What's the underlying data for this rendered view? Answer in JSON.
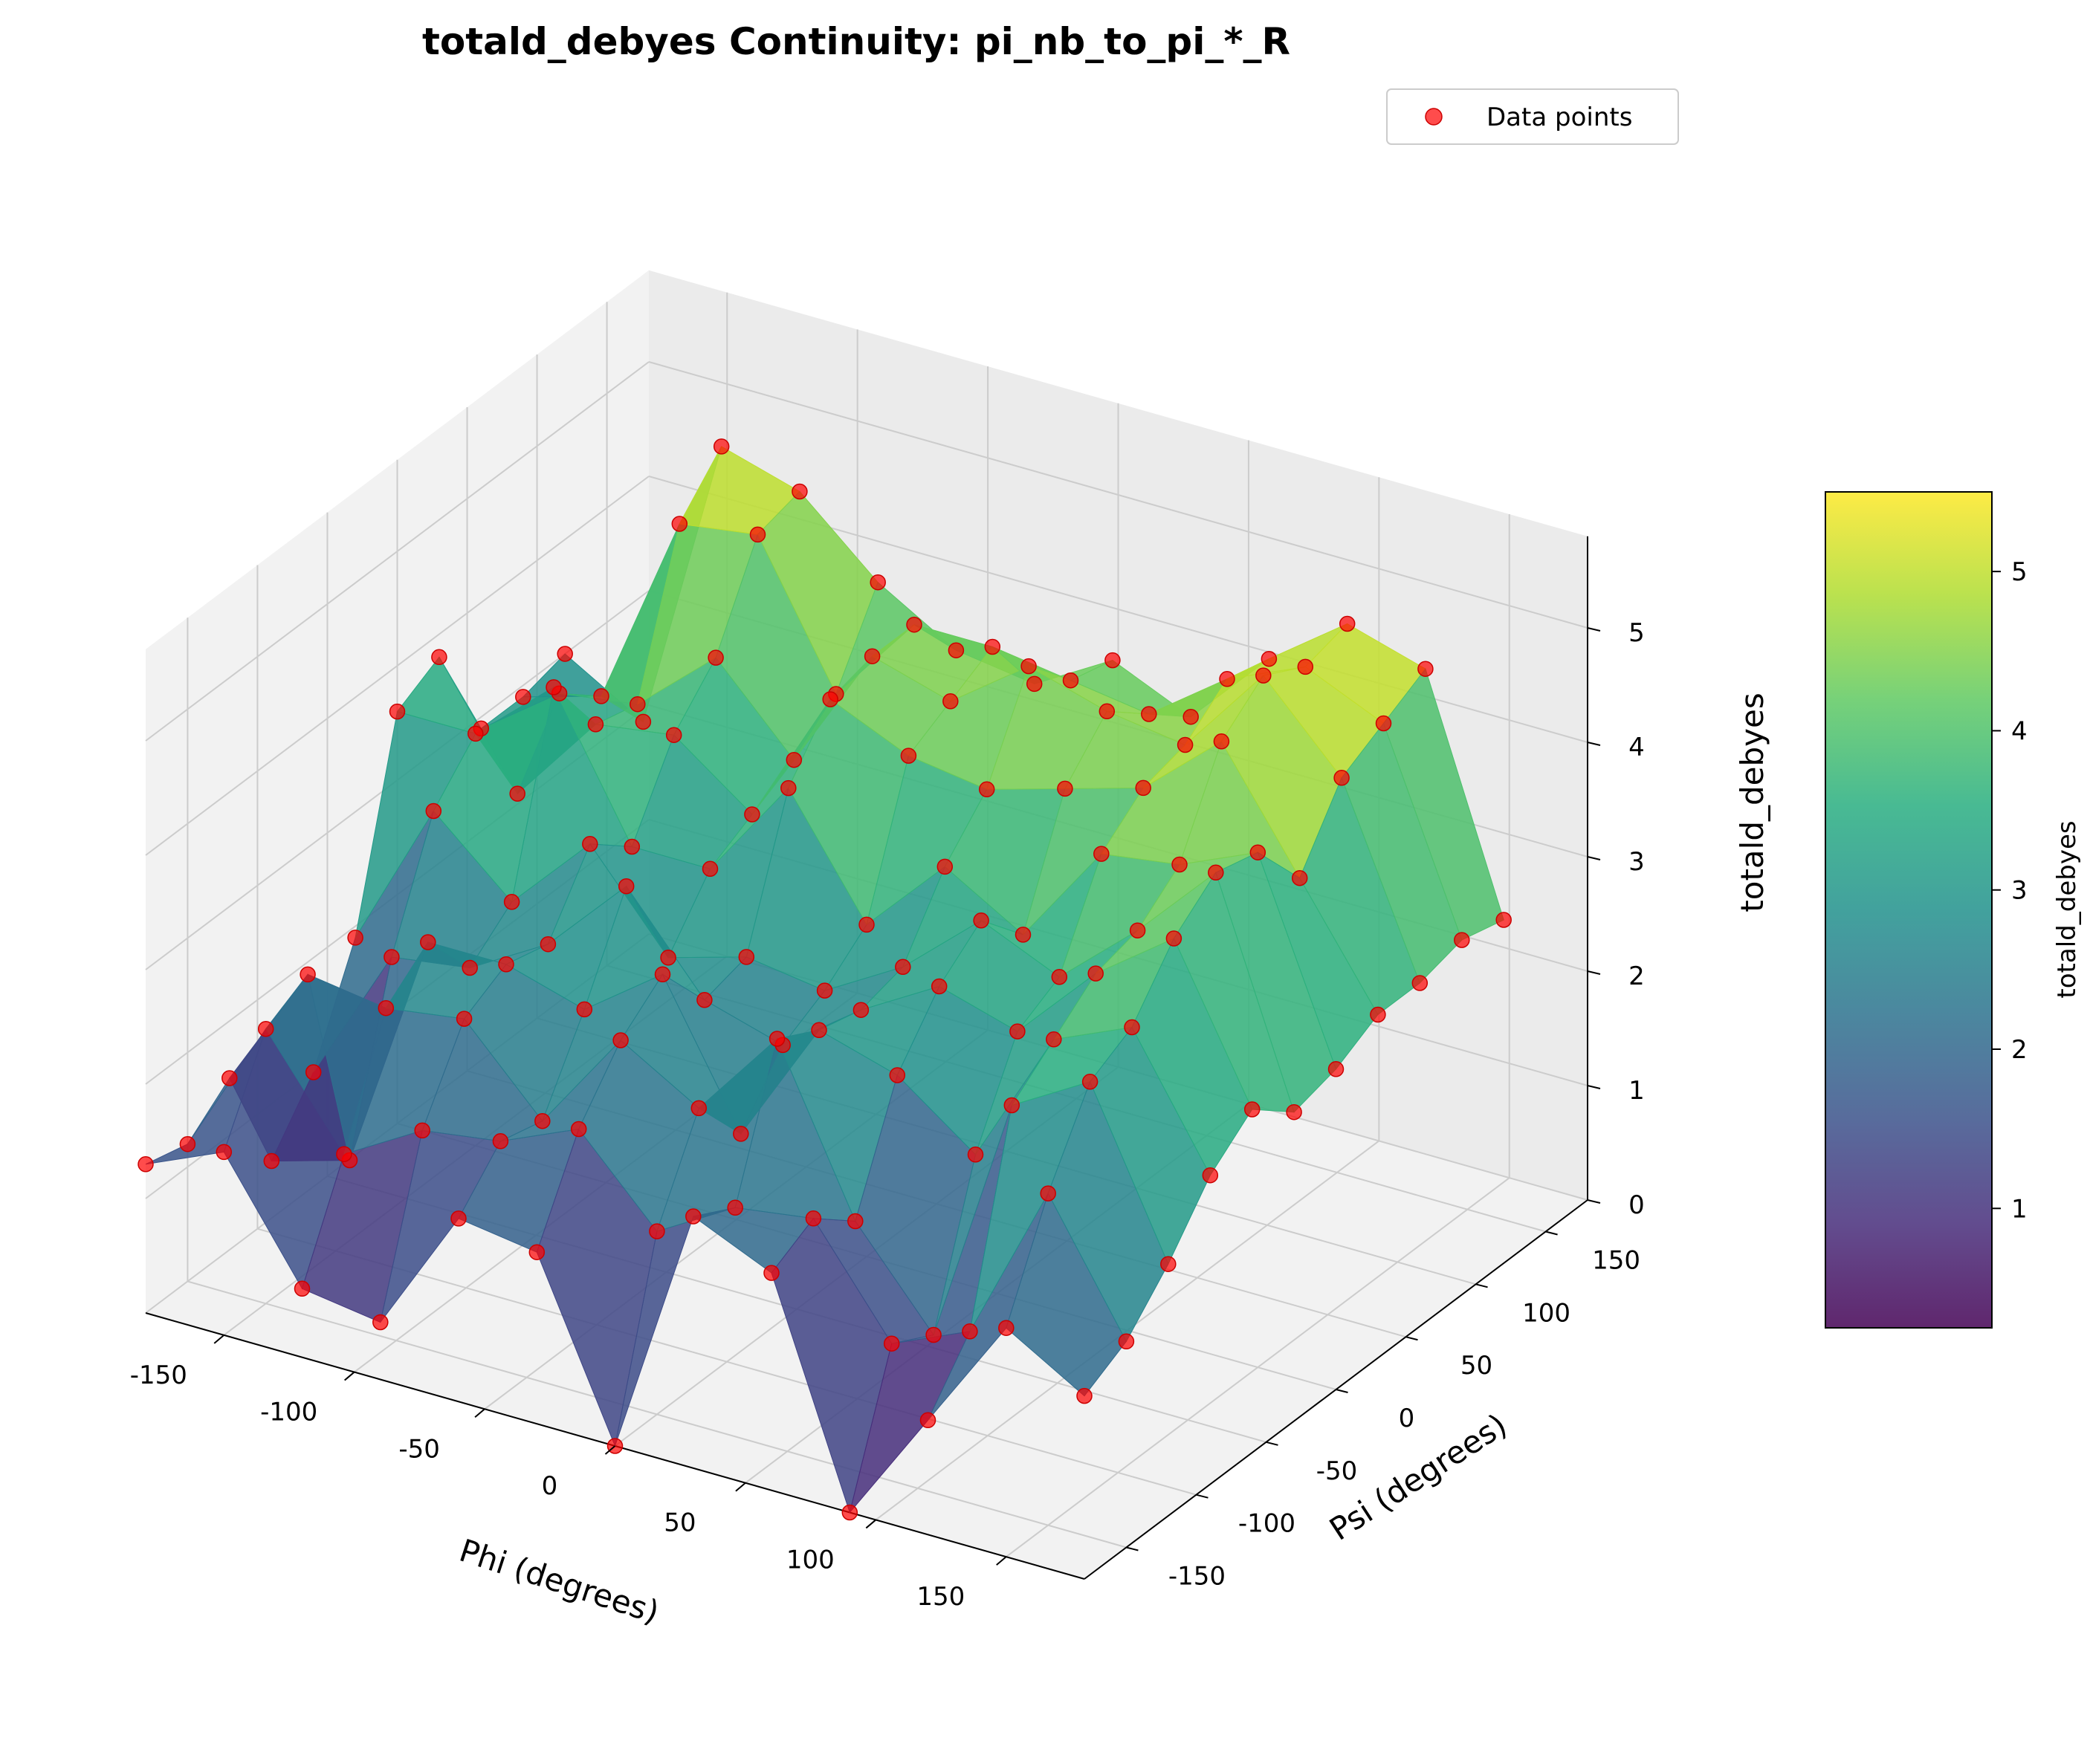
{
  "chart_data": {
    "type": "surface3d-scatter",
    "title": "totald_debyes Continuity: pi_nb_to_pi_*_R",
    "xlabel": "Phi (degrees)",
    "ylabel": "Psi (degrees)",
    "zlabel": "totald_debyes",
    "xticks": [
      -150,
      -100,
      -50,
      0,
      50,
      100,
      150
    ],
    "yticks": [
      -150,
      -100,
      -50,
      0,
      50,
      100,
      150
    ],
    "zticks": [
      0,
      1,
      2,
      3,
      4,
      5
    ],
    "xlim": [
      -180,
      180
    ],
    "ylim": [
      -180,
      180
    ],
    "zlim": [
      0,
      5.8
    ],
    "grid": true,
    "legend": {
      "entries": [
        "Data points"
      ],
      "placement": "top-right"
    },
    "colormap": "viridis",
    "colorbar": {
      "label": "totald_debyes",
      "ticks": [
        1,
        2,
        3,
        4,
        5
      ],
      "range": [
        0.25,
        5.5
      ]
    },
    "scatter_color": "#ff0000",
    "points": [
      [
        -180,
        -180,
        1.3
      ],
      [
        -180,
        -150,
        1.2
      ],
      [
        -180,
        -120,
        1.5
      ],
      [
        -180,
        -90,
        0.5
      ],
      [
        -180,
        -60,
        1.0
      ],
      [
        -180,
        -30,
        1.9
      ],
      [
        -180,
        0,
        3.6
      ],
      [
        -180,
        30,
        3.8
      ],
      [
        -180,
        60,
        2.9
      ],
      [
        -180,
        90,
        2.9
      ],
      [
        -180,
        120,
        3.0
      ],
      [
        -150,
        -180,
        1.6
      ],
      [
        -150,
        -150,
        2.4
      ],
      [
        -150,
        -120,
        2.6
      ],
      [
        -150,
        -90,
        0.7
      ],
      [
        -150,
        -60,
        2.2
      ],
      [
        -150,
        -30,
        3.2
      ],
      [
        -150,
        0,
        3.6
      ],
      [
        -150,
        30,
        2.8
      ],
      [
        -150,
        60,
        3.4
      ],
      [
        -150,
        90,
        3.1
      ],
      [
        -150,
        120,
        2.6
      ],
      [
        -120,
        -180,
        0.6
      ],
      [
        -120,
        -150,
        1.5
      ],
      [
        -120,
        -120,
        2.5
      ],
      [
        -120,
        -90,
        2.8
      ],
      [
        -120,
        -60,
        2.3
      ],
      [
        -120,
        -30,
        2.6
      ],
      [
        -120,
        0,
        4.2
      ],
      [
        -120,
        30,
        3.6
      ],
      [
        -120,
        60,
        3.5
      ],
      [
        -120,
        90,
        4.8
      ],
      [
        -120,
        120,
        5.2
      ],
      [
        -90,
        -180,
        0.5
      ],
      [
        -90,
        -150,
        1.9
      ],
      [
        -90,
        -120,
        2.6
      ],
      [
        -90,
        -90,
        2.8
      ],
      [
        -90,
        -60,
        2.7
      ],
      [
        -90,
        -30,
        3.3
      ],
      [
        -90,
        0,
        3.0
      ],
      [
        -90,
        30,
        3.7
      ],
      [
        -90,
        60,
        4.1
      ],
      [
        -90,
        90,
        4.9
      ],
      [
        -90,
        120,
        5.0
      ],
      [
        -60,
        -180,
        1.6
      ],
      [
        -60,
        -150,
        2.0
      ],
      [
        -60,
        -120,
        1.9
      ],
      [
        -60,
        -90,
        2.6
      ],
      [
        -60,
        -60,
        3.4
      ],
      [
        -60,
        -30,
        2.5
      ],
      [
        -60,
        0,
        3.0
      ],
      [
        -60,
        30,
        3.2
      ],
      [
        -60,
        60,
        3.4
      ],
      [
        -60,
        90,
        3.7
      ],
      [
        -60,
        120,
        4.4
      ],
      [
        -30,
        -180,
        1.5
      ],
      [
        -30,
        -150,
        2.3
      ],
      [
        -30,
        -120,
        2.8
      ],
      [
        -30,
        -90,
        3.1
      ],
      [
        -30,
        -60,
        2.6
      ],
      [
        -30,
        -30,
        2.7
      ],
      [
        -30,
        0,
        3.9
      ],
      [
        -30,
        30,
        4.4
      ],
      [
        -30,
        60,
        4.5
      ],
      [
        -30,
        90,
        4.5
      ],
      [
        -30,
        120,
        4.0
      ],
      [
        0,
        -180,
        0.0
      ],
      [
        0,
        -150,
        1.6
      ],
      [
        0,
        -120,
        2.4
      ],
      [
        0,
        -90,
        1.9
      ],
      [
        0,
        -60,
        2.4
      ],
      [
        0,
        -30,
        2.6
      ],
      [
        0,
        0,
        2.9
      ],
      [
        0,
        30,
        4.1
      ],
      [
        0,
        60,
        4.3
      ],
      [
        0,
        90,
        4.5
      ],
      [
        0,
        120,
        3.9
      ],
      [
        30,
        -180,
        2.2
      ],
      [
        30,
        -150,
        2.0
      ],
      [
        30,
        -120,
        3.2
      ],
      [
        30,
        -90,
        3.0
      ],
      [
        30,
        -60,
        2.9
      ],
      [
        30,
        -30,
        3.0
      ],
      [
        30,
        0,
        3.6
      ],
      [
        30,
        30,
        4.0
      ],
      [
        30,
        60,
        4.8
      ],
      [
        30,
        90,
        4.4
      ],
      [
        30,
        120,
        4.3
      ],
      [
        60,
        -180,
        1.9
      ],
      [
        60,
        -150,
        2.1
      ],
      [
        60,
        -120,
        1.8
      ],
      [
        60,
        -90,
        2.8
      ],
      [
        60,
        -60,
        3.3
      ],
      [
        60,
        -30,
        3.6
      ],
      [
        60,
        0,
        3.2
      ],
      [
        60,
        30,
        4.2
      ],
      [
        60,
        60,
        4.6
      ],
      [
        60,
        90,
        4.3
      ],
      [
        60,
        120,
        4.0
      ],
      [
        90,
        -180,
        0.0
      ],
      [
        90,
        -150,
        1.2
      ],
      [
        90,
        -120,
        1.0
      ],
      [
        90,
        -90,
        2.3
      ],
      [
        90,
        -60,
        3.1
      ],
      [
        90,
        -30,
        3.3
      ],
      [
        90,
        0,
        4.1
      ],
      [
        90,
        30,
        4.4
      ],
      [
        90,
        60,
        4.5
      ],
      [
        90,
        90,
        4.8
      ],
      [
        90,
        120,
        4.7
      ],
      [
        120,
        -180,
        1.0
      ],
      [
        120,
        -150,
        1.5
      ],
      [
        120,
        -120,
        3.2
      ],
      [
        120,
        -90,
        3.5
      ],
      [
        120,
        -60,
        3.8
      ],
      [
        120,
        -30,
        3.9
      ],
      [
        120,
        0,
        4.2
      ],
      [
        120,
        30,
        5.0
      ],
      [
        120,
        60,
        5.3
      ],
      [
        120,
        90,
        5.1
      ],
      [
        120,
        120,
        5.2
      ],
      [
        150,
        -180,
        2.0
      ],
      [
        150,
        -150,
        2.9
      ],
      [
        150,
        -120,
        3.6
      ],
      [
        150,
        -90,
        3.8
      ],
      [
        150,
        -60,
        4.3
      ],
      [
        150,
        -30,
        4.6
      ],
      [
        150,
        0,
        4.5
      ],
      [
        150,
        30,
        4.0
      ],
      [
        150,
        60,
        4.6
      ],
      [
        150,
        90,
        4.8
      ],
      [
        150,
        120,
        5.0
      ],
      [
        180,
        -180,
        1.6
      ],
      [
        180,
        -150,
        1.8
      ],
      [
        180,
        -120,
        2.2
      ],
      [
        180,
        -90,
        2.7
      ],
      [
        180,
        -60,
        3.0
      ],
      [
        180,
        -30,
        2.7
      ],
      [
        180,
        0,
        2.8
      ],
      [
        180,
        30,
        3.0
      ],
      [
        180,
        60,
        3.0
      ],
      [
        180,
        90,
        3.1
      ],
      [
        180,
        120,
        3.0
      ]
    ]
  }
}
